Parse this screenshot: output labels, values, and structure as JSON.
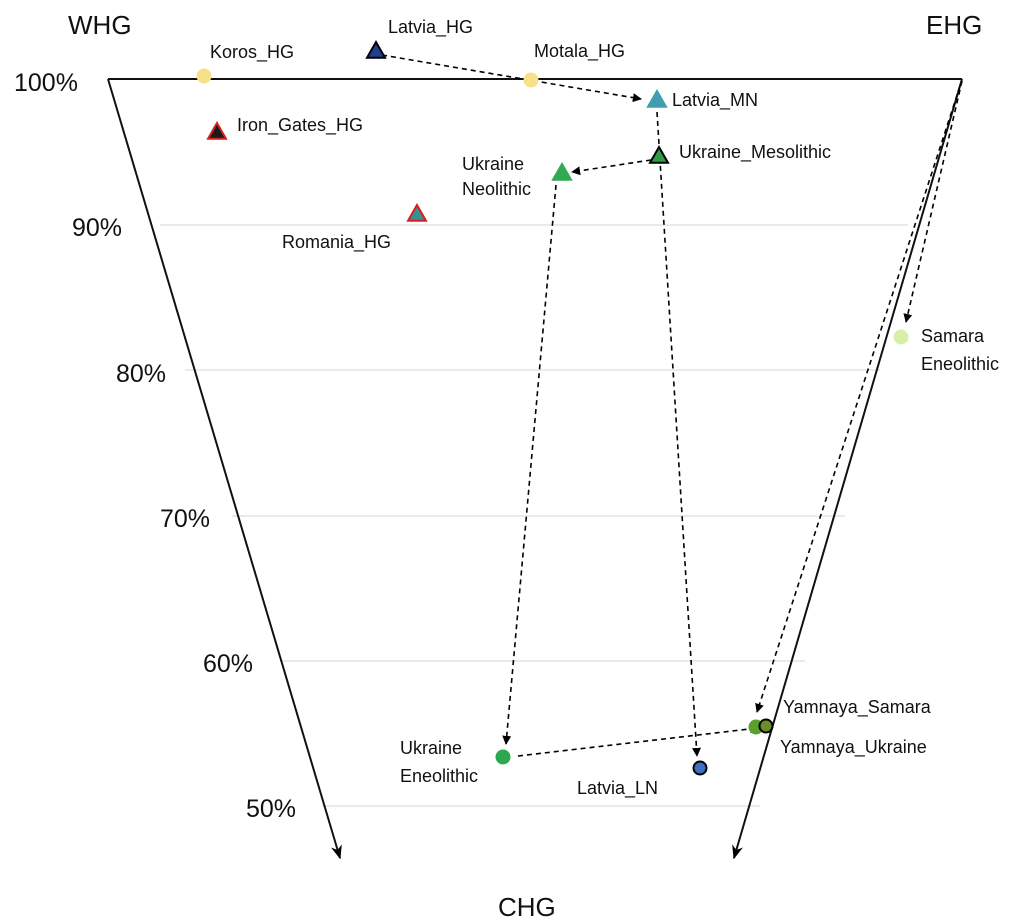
{
  "chart_data": {
    "type": "scatter",
    "corners": {
      "top_left": "WHG",
      "top_right": "EHG",
      "bottom": "CHG"
    },
    "y_ticks": [
      "100%",
      "90%",
      "80%",
      "70%",
      "60%",
      "50%"
    ],
    "grid": true,
    "points": [
      {
        "id": "koros",
        "label": [
          "Koros_HG"
        ],
        "y": 100.0,
        "marker": "circle",
        "fill": "#f7e08a",
        "stroke": "#f7e08a"
      },
      {
        "id": "latvia_hg",
        "label": [
          "Latvia_HG"
        ],
        "y": 102.0,
        "marker": "triangle",
        "fill": "#1f3f8f",
        "stroke": "#000000"
      },
      {
        "id": "motala",
        "label": [
          "Motala_HG"
        ],
        "y": 100.0,
        "marker": "circle",
        "fill": "#f7e08a",
        "stroke": "#f7e08a"
      },
      {
        "id": "iron",
        "label": [
          "Iron_Gates_HG"
        ],
        "y": 96.5,
        "marker": "triangle",
        "fill": "#1a1a1a",
        "stroke": "#d62020"
      },
      {
        "id": "latvia_mn",
        "label": [
          "Latvia_MN"
        ],
        "y": 98.5,
        "marker": "triangle",
        "fill": "#3f9fb0",
        "stroke": "#3f9fb0"
      },
      {
        "id": "ukr_meso",
        "label": [
          "Ukraine_Mesolithic"
        ],
        "y": 94.7,
        "marker": "triangle",
        "fill": "#2e9e45",
        "stroke": "#000000"
      },
      {
        "id": "ukr_neo",
        "label": [
          "Ukraine",
          "Neolithic"
        ],
        "y": 93.5,
        "marker": "triangle",
        "fill": "#33a852",
        "stroke": "#33a852"
      },
      {
        "id": "romania",
        "label": [
          "Romania_HG"
        ],
        "y": 90.7,
        "marker": "triangle",
        "fill": "#3a8f8f",
        "stroke": "#d62020"
      },
      {
        "id": "samara_e",
        "label": [
          "Samara",
          "Eneolithic"
        ],
        "y": 82.3,
        "marker": "circle",
        "fill": "#d8efa8",
        "stroke": "#d8efa8"
      },
      {
        "id": "yam_samara",
        "label": [
          "Yamnaya_Samara"
        ],
        "y": 55.3,
        "marker": "circle",
        "fill": "#5aa02c",
        "stroke": "#5aa02c"
      },
      {
        "id": "yam_ukr",
        "label": [
          "Yamnaya_Ukraine"
        ],
        "y": 55.2,
        "marker": "circle",
        "fill": "#6a8f2a",
        "stroke": "#000000"
      },
      {
        "id": "ukr_eneo",
        "label": [
          "Ukraine",
          "Eneolithic"
        ],
        "y": 53.4,
        "marker": "circle",
        "fill": "#2ea84f",
        "stroke": "#2ea84f"
      },
      {
        "id": "latvia_ln",
        "label": [
          "Latvia_LN"
        ],
        "y": 52.6,
        "marker": "circle",
        "fill": "#3f6fc0",
        "stroke": "#000000"
      }
    ],
    "arrows": [
      {
        "from": "latvia_hg",
        "to": "latvia_mn"
      },
      {
        "from": "latvia_mn",
        "to": "latvia_ln"
      },
      {
        "from": "ukr_meso",
        "to": "ukr_neo"
      },
      {
        "from": "ukr_neo",
        "to": "ukr_eneo"
      },
      {
        "from": "ukr_eneo",
        "to": "yam_ukr"
      },
      {
        "from": "ehg_corner",
        "to": "samara_e"
      },
      {
        "from": "ehg_corner",
        "to": "yam_samara"
      }
    ]
  }
}
